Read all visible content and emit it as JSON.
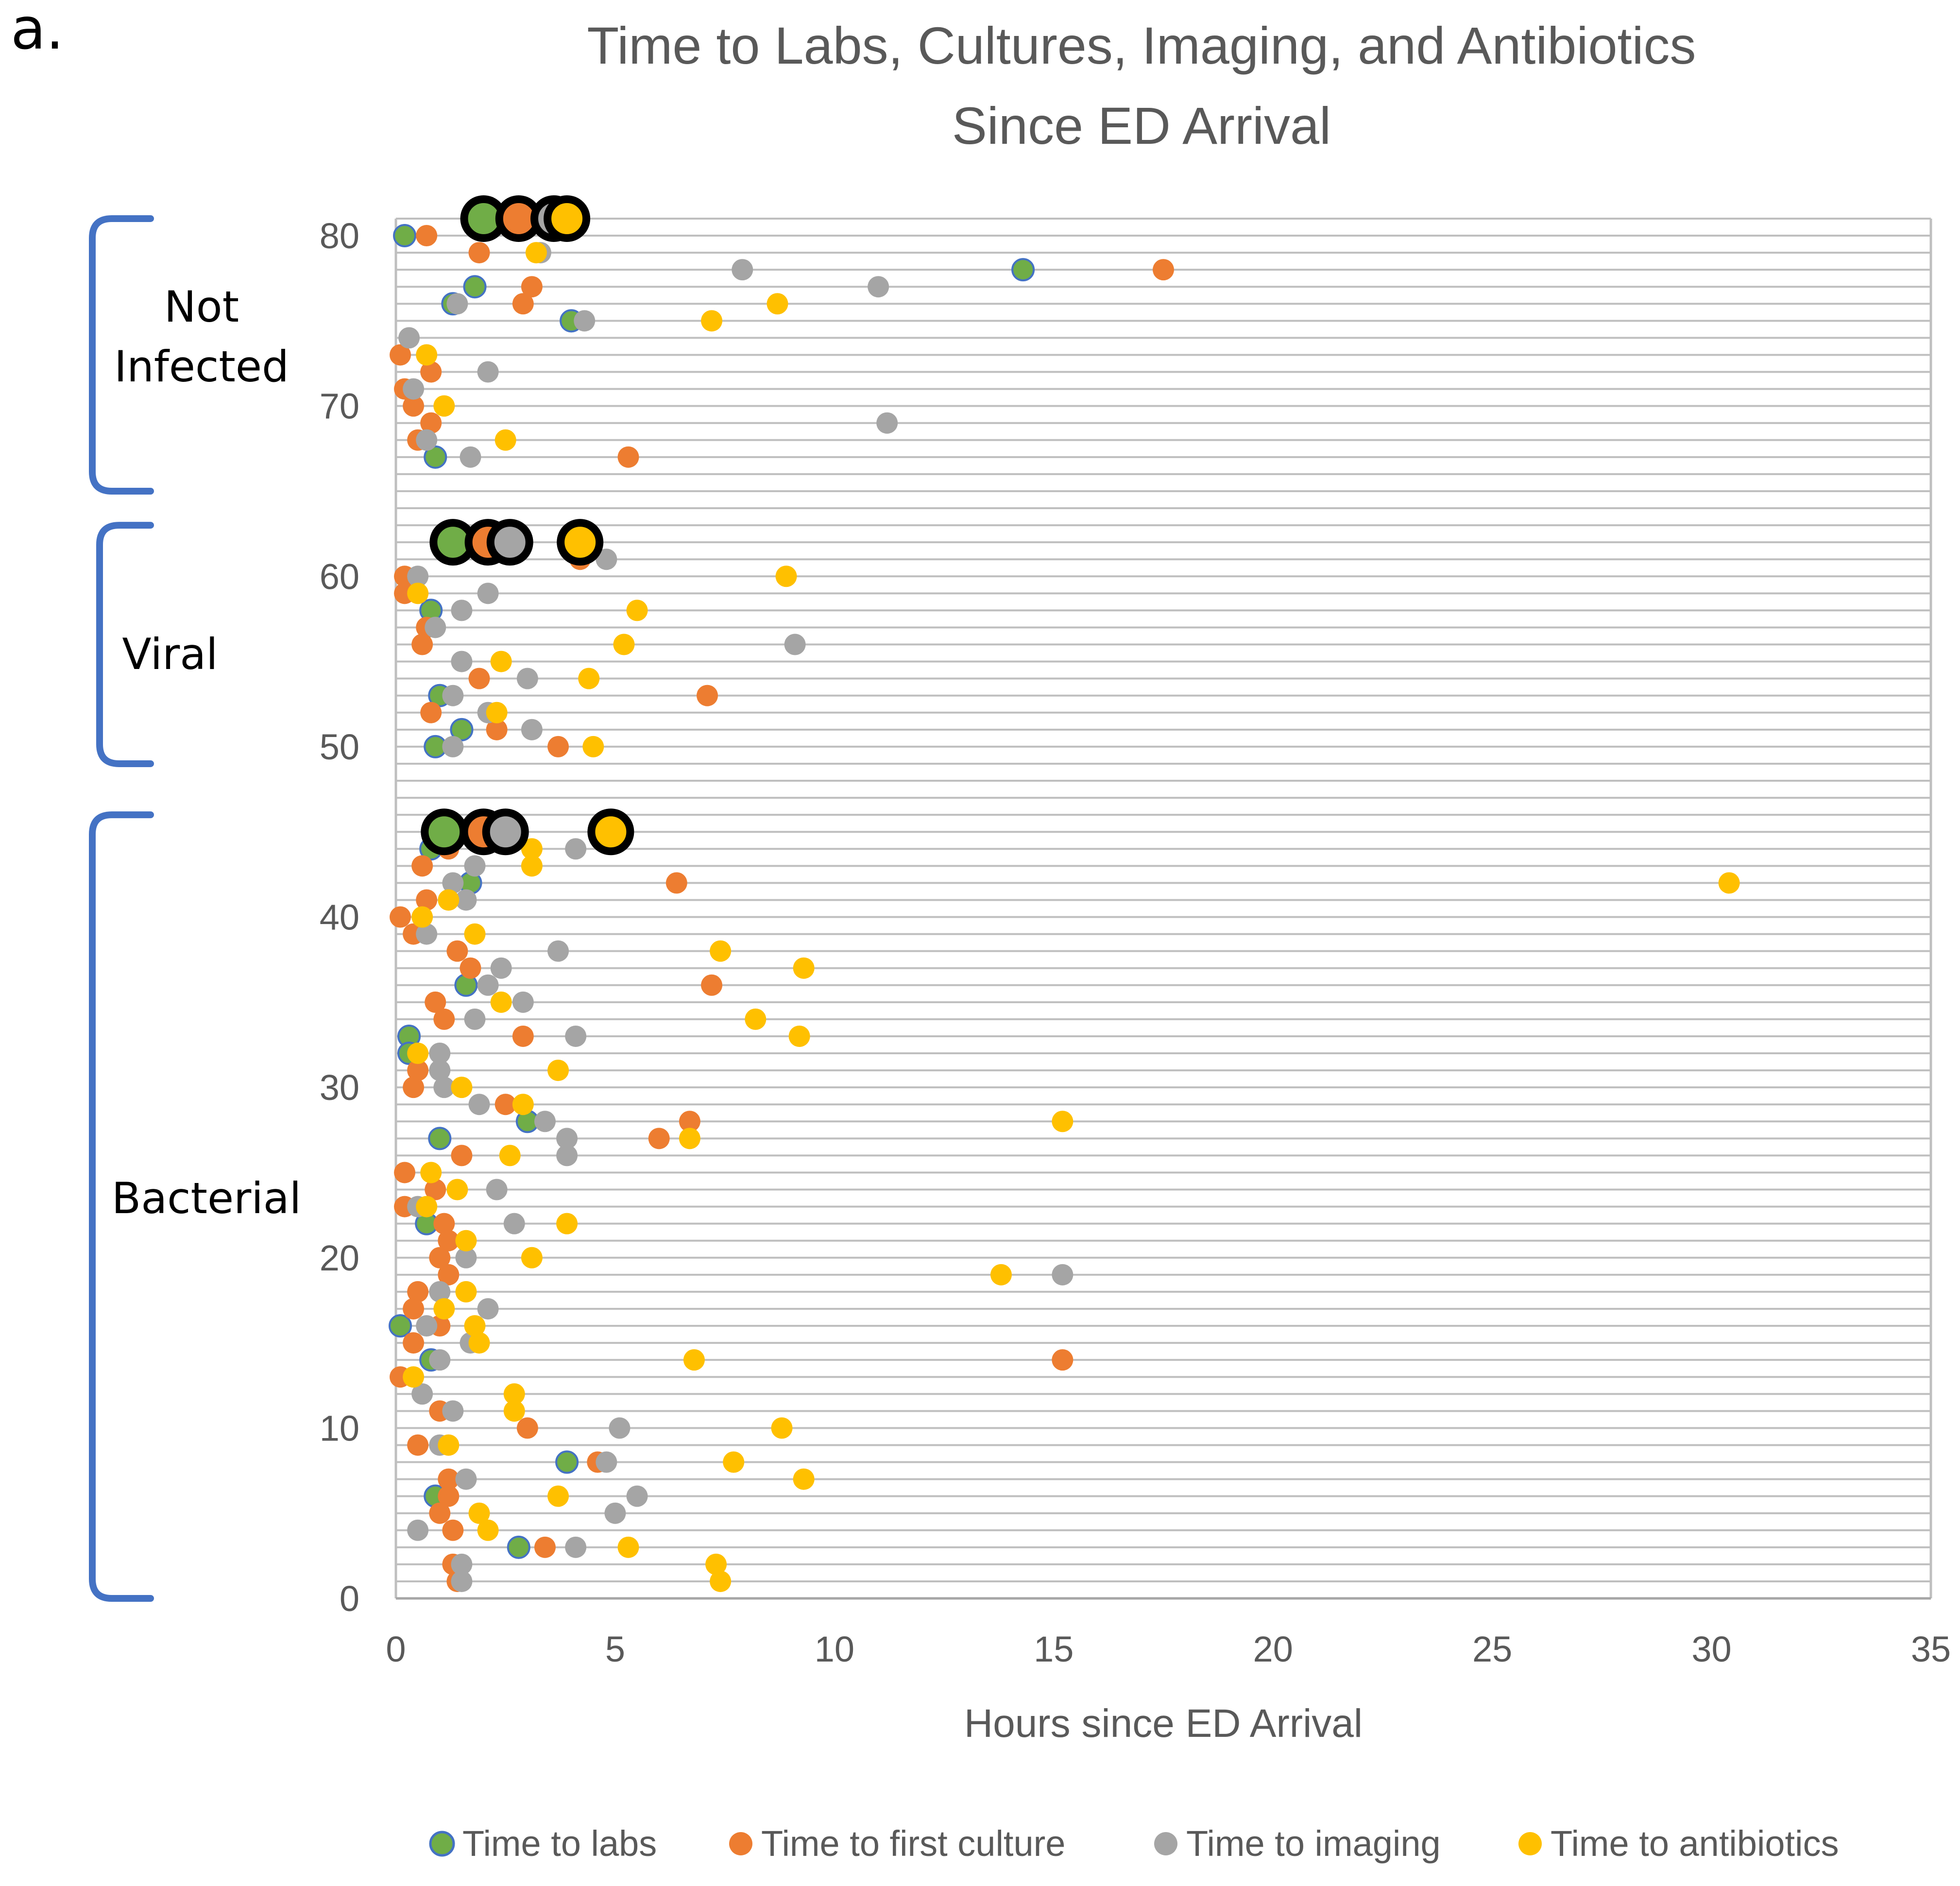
{
  "panel_label": "a.",
  "colors": {
    "labs": "#70AD47",
    "labs_edge": "#4472C4",
    "culture": "#ED7D31",
    "imaging": "#A5A5A5",
    "antibiotics": "#FFC000",
    "bracket": "#4472C4",
    "grid": "#BFBFBF",
    "axis_text": "#595959"
  },
  "groups": [
    {
      "label_lines": [
        "Not",
        "Infected"
      ],
      "y_range": [
        65,
        81
      ]
    },
    {
      "label_lines": [
        "Viral"
      ],
      "y_range": [
        49,
        63
      ]
    },
    {
      "label_lines": [
        "Bacterial"
      ],
      "y_range": [
        0,
        46
      ]
    }
  ],
  "chart_data": {
    "type": "scatter",
    "title_lines": [
      "Time to Labs, Cultures, Imaging,  and Antibiotics",
      "Since ED Arrival"
    ],
    "xlabel": "Hours since ED Arrival",
    "ylabel": "",
    "xlim": [
      0,
      35
    ],
    "ylim": [
      0,
      81
    ],
    "x_ticks": [
      0,
      5,
      10,
      15,
      20,
      25,
      30,
      35
    ],
    "y_ticks": [
      0,
      10,
      20,
      30,
      40,
      50,
      60,
      70,
      80
    ],
    "y_gridlines_every": 1,
    "legend_position": "bottom",
    "series": [
      {
        "name": "Time to labs",
        "key": "labs",
        "points": [
          [
            0.2,
            80
          ],
          [
            14.3,
            78
          ],
          [
            1.8,
            77
          ],
          [
            1.3,
            76
          ],
          [
            4.0,
            75
          ],
          [
            0.9,
            67
          ],
          [
            0.8,
            58
          ],
          [
            1.0,
            53
          ],
          [
            1.5,
            51
          ],
          [
            0.9,
            50
          ],
          [
            0.8,
            44
          ],
          [
            1.7,
            42
          ],
          [
            1.6,
            36
          ],
          [
            0.3,
            33
          ],
          [
            0.3,
            32
          ],
          [
            3.0,
            28
          ],
          [
            1.0,
            27
          ],
          [
            0.7,
            22
          ],
          [
            0.1,
            16
          ],
          [
            0.8,
            14
          ],
          [
            3.9,
            8
          ],
          [
            0.9,
            6
          ],
          [
            2.8,
            3
          ]
        ],
        "summary": [
          [
            2.0,
            81
          ],
          [
            1.3,
            62
          ],
          [
            1.1,
            45
          ]
        ]
      },
      {
        "name": "Time to first culture",
        "key": "culture",
        "points": [
          [
            0.7,
            80
          ],
          [
            1.9,
            79
          ],
          [
            17.5,
            78
          ],
          [
            3.1,
            77
          ],
          [
            2.9,
            76
          ],
          [
            0.1,
            73
          ],
          [
            0.8,
            72
          ],
          [
            0.2,
            71
          ],
          [
            0.4,
            70
          ],
          [
            0.8,
            69
          ],
          [
            0.5,
            68
          ],
          [
            5.3,
            67
          ],
          [
            4.2,
            61
          ],
          [
            0.2,
            60
          ],
          [
            0.2,
            59
          ],
          [
            0.7,
            57
          ],
          [
            0.6,
            56
          ],
          [
            1.9,
            54
          ],
          [
            7.1,
            53
          ],
          [
            0.8,
            52
          ],
          [
            2.3,
            51
          ],
          [
            3.7,
            50
          ],
          [
            1.2,
            44
          ],
          [
            0.6,
            43
          ],
          [
            6.4,
            42
          ],
          [
            0.7,
            41
          ],
          [
            0.1,
            40
          ],
          [
            0.4,
            39
          ],
          [
            1.4,
            38
          ],
          [
            1.7,
            37
          ],
          [
            7.2,
            36
          ],
          [
            0.9,
            35
          ],
          [
            1.1,
            34
          ],
          [
            2.9,
            33
          ],
          [
            0.5,
            31
          ],
          [
            0.4,
            30
          ],
          [
            2.5,
            29
          ],
          [
            6.7,
            28
          ],
          [
            6.0,
            27
          ],
          [
            1.5,
            26
          ],
          [
            0.2,
            25
          ],
          [
            0.9,
            24
          ],
          [
            0.2,
            23
          ],
          [
            1.1,
            22
          ],
          [
            1.2,
            21
          ],
          [
            1.0,
            20
          ],
          [
            1.2,
            19
          ],
          [
            0.5,
            18
          ],
          [
            0.4,
            17
          ],
          [
            1.0,
            16
          ],
          [
            0.4,
            15
          ],
          [
            15.2,
            14
          ],
          [
            0.1,
            13
          ],
          [
            1.0,
            11
          ],
          [
            3.0,
            10
          ],
          [
            0.5,
            9
          ],
          [
            4.6,
            8
          ],
          [
            1.2,
            7
          ],
          [
            1.2,
            6
          ],
          [
            1.0,
            5
          ],
          [
            1.3,
            4
          ],
          [
            3.4,
            3
          ],
          [
            1.3,
            2
          ],
          [
            1.4,
            1
          ]
        ],
        "summary": [
          [
            2.8,
            81
          ],
          [
            2.1,
            62
          ],
          [
            2.0,
            45
          ]
        ]
      },
      {
        "name": "Time to imaging",
        "key": "imaging",
        "points": [
          [
            3.3,
            79
          ],
          [
            7.9,
            78
          ],
          [
            11.0,
            77
          ],
          [
            1.4,
            76
          ],
          [
            4.3,
            75
          ],
          [
            0.3,
            74
          ],
          [
            2.1,
            72
          ],
          [
            0.4,
            71
          ],
          [
            11.2,
            69
          ],
          [
            0.7,
            68
          ],
          [
            1.7,
            67
          ],
          [
            4.8,
            61
          ],
          [
            0.5,
            60
          ],
          [
            2.1,
            59
          ],
          [
            1.5,
            58
          ],
          [
            0.9,
            57
          ],
          [
            9.1,
            56
          ],
          [
            1.5,
            55
          ],
          [
            3.0,
            54
          ],
          [
            1.3,
            53
          ],
          [
            2.1,
            52
          ],
          [
            3.1,
            51
          ],
          [
            1.3,
            50
          ],
          [
            4.1,
            44
          ],
          [
            1.8,
            43
          ],
          [
            1.3,
            42
          ],
          [
            1.6,
            41
          ],
          [
            0.7,
            39
          ],
          [
            3.7,
            38
          ],
          [
            2.4,
            37
          ],
          [
            2.1,
            36
          ],
          [
            2.9,
            35
          ],
          [
            1.8,
            34
          ],
          [
            4.1,
            33
          ],
          [
            1.0,
            32
          ],
          [
            1.0,
            31
          ],
          [
            1.1,
            30
          ],
          [
            1.9,
            29
          ],
          [
            3.4,
            28
          ],
          [
            3.9,
            27
          ],
          [
            3.9,
            26
          ],
          [
            2.3,
            24
          ],
          [
            0.5,
            23
          ],
          [
            2.7,
            22
          ],
          [
            1.6,
            20
          ],
          [
            15.2,
            19
          ],
          [
            1.0,
            18
          ],
          [
            2.1,
            17
          ],
          [
            0.7,
            16
          ],
          [
            1.7,
            15
          ],
          [
            1.0,
            14
          ],
          [
            0.6,
            12
          ],
          [
            1.3,
            11
          ],
          [
            5.1,
            10
          ],
          [
            1.0,
            9
          ],
          [
            4.8,
            8
          ],
          [
            1.6,
            7
          ],
          [
            5.5,
            6
          ],
          [
            5.0,
            5
          ],
          [
            0.5,
            4
          ],
          [
            4.1,
            3
          ],
          [
            1.5,
            2
          ],
          [
            1.5,
            1
          ]
        ],
        "summary": [
          [
            3.6,
            81
          ],
          [
            2.6,
            62
          ],
          [
            2.5,
            45
          ]
        ]
      },
      {
        "name": "Time to antibiotics",
        "key": "antibiotics",
        "points": [
          [
            3.2,
            79
          ],
          [
            8.7,
            76
          ],
          [
            7.2,
            75
          ],
          [
            0.7,
            73
          ],
          [
            1.1,
            70
          ],
          [
            2.5,
            68
          ],
          [
            8.9,
            60
          ],
          [
            0.5,
            59
          ],
          [
            5.5,
            58
          ],
          [
            5.2,
            56
          ],
          [
            2.4,
            55
          ],
          [
            4.4,
            54
          ],
          [
            2.3,
            52
          ],
          [
            4.5,
            50
          ],
          [
            3.1,
            44
          ],
          [
            3.1,
            43
          ],
          [
            30.4,
            42
          ],
          [
            1.2,
            41
          ],
          [
            0.6,
            40
          ],
          [
            1.8,
            39
          ],
          [
            7.4,
            38
          ],
          [
            9.3,
            37
          ],
          [
            2.4,
            35
          ],
          [
            8.2,
            34
          ],
          [
            9.2,
            33
          ],
          [
            0.5,
            32
          ],
          [
            3.7,
            31
          ],
          [
            1.5,
            30
          ],
          [
            2.9,
            29
          ],
          [
            15.2,
            28
          ],
          [
            6.7,
            27
          ],
          [
            2.6,
            26
          ],
          [
            0.8,
            25
          ],
          [
            1.4,
            24
          ],
          [
            0.7,
            23
          ],
          [
            3.9,
            22
          ],
          [
            1.6,
            21
          ],
          [
            3.1,
            20
          ],
          [
            13.8,
            19
          ],
          [
            1.6,
            18
          ],
          [
            1.1,
            17
          ],
          [
            1.8,
            16
          ],
          [
            1.9,
            15
          ],
          [
            6.8,
            14
          ],
          [
            0.4,
            13
          ],
          [
            2.7,
            12
          ],
          [
            2.7,
            11
          ],
          [
            8.8,
            10
          ],
          [
            1.2,
            9
          ],
          [
            7.7,
            8
          ],
          [
            9.3,
            7
          ],
          [
            3.7,
            6
          ],
          [
            1.9,
            5
          ],
          [
            2.1,
            4
          ],
          [
            5.3,
            3
          ],
          [
            7.3,
            2
          ],
          [
            7.4,
            1
          ]
        ],
        "summary": [
          [
            3.9,
            81
          ],
          [
            4.2,
            62
          ],
          [
            4.9,
            45
          ]
        ]
      }
    ]
  }
}
